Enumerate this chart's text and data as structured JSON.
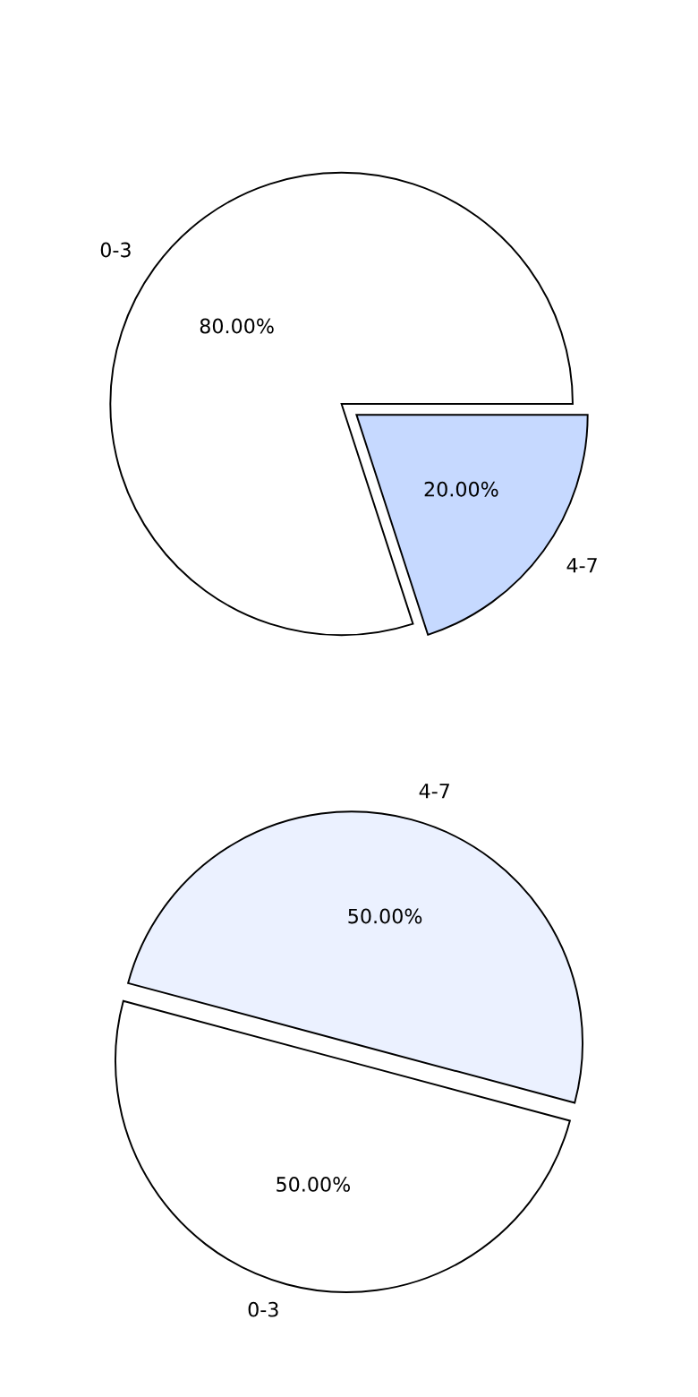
{
  "chart_data": [
    {
      "type": "pie",
      "categories": [
        "0-3",
        "4-7"
      ],
      "values": [
        80,
        20
      ],
      "colors": [
        "#ffffff",
        "#c6d9ff"
      ],
      "value_labels": [
        "80.00%",
        "20.00%"
      ]
    },
    {
      "type": "pie",
      "categories": [
        "0-3",
        "4-7"
      ],
      "values": [
        50,
        50
      ],
      "colors": [
        "#ffffff",
        "#ebf1ff"
      ],
      "value_labels": [
        "50.00%",
        "50.00%"
      ]
    }
  ]
}
